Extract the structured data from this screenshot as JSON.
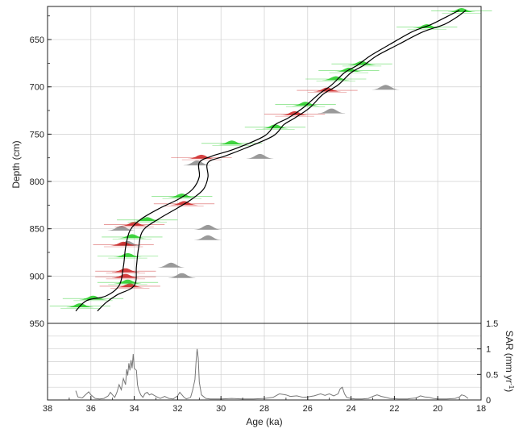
{
  "chart_data": {
    "type": "line",
    "title": "",
    "x_axis": {
      "label": "Age (ka)",
      "reversed": true,
      "range": [
        38,
        18
      ],
      "ticks": [
        38,
        36,
        34,
        32,
        30,
        28,
        26,
        24,
        22,
        20,
        18
      ]
    },
    "depth_axis": {
      "label": "Depth (cm)",
      "reversed": true,
      "range": [
        615,
        950
      ],
      "ticks": [
        650,
        700,
        750,
        800,
        850,
        900,
        950
      ]
    },
    "sar_axis": {
      "label_main": "SAR (mm yr",
      "label_sup": "-1",
      "label_end": ")",
      "range": [
        0,
        1.5
      ],
      "ticks": [
        0,
        0.5,
        1,
        1.5
      ],
      "tick_labels": [
        "0",
        "0.5",
        "1",
        "1.5"
      ]
    },
    "grid": true,
    "colors": {
      "envelope": "#000000",
      "accepted_date": "#22cc22",
      "outlier_date": "#cc2222",
      "rejected_date": "#888888",
      "sar_line": "#777777"
    },
    "series": [
      {
        "role": "age-depth-envelope-older",
        "points": [
          [
            36.7,
            937
          ],
          [
            36.2,
            926
          ],
          [
            35.3,
            921
          ],
          [
            34.7,
            910
          ],
          [
            34.5,
            890
          ],
          [
            34.4,
            870
          ],
          [
            34.2,
            852
          ],
          [
            33.7,
            840
          ],
          [
            32.8,
            828
          ],
          [
            31.9,
            818
          ],
          [
            31.3,
            808
          ],
          [
            31.0,
            795
          ],
          [
            31.0,
            780
          ],
          [
            30.4,
            773
          ],
          [
            29.4,
            766
          ],
          [
            28.0,
            752
          ],
          [
            27.5,
            740
          ],
          [
            26.9,
            733
          ],
          [
            26.2,
            722
          ],
          [
            25.5,
            708
          ],
          [
            24.9,
            698
          ],
          [
            24.3,
            685
          ],
          [
            23.7,
            677
          ],
          [
            23.1,
            667
          ],
          [
            22.2,
            655
          ],
          [
            21.2,
            642
          ],
          [
            20.3,
            634
          ],
          [
            19.6,
            626
          ],
          [
            19.0,
            619
          ]
        ]
      },
      {
        "role": "age-depth-envelope-younger",
        "points": [
          [
            35.7,
            937
          ],
          [
            35.3,
            928
          ],
          [
            34.8,
            920
          ],
          [
            34.0,
            910
          ],
          [
            33.9,
            890
          ],
          [
            33.8,
            870
          ],
          [
            33.6,
            852
          ],
          [
            32.9,
            840
          ],
          [
            32.0,
            828
          ],
          [
            31.3,
            818
          ],
          [
            30.8,
            808
          ],
          [
            30.6,
            795
          ],
          [
            30.6,
            780
          ],
          [
            29.8,
            773
          ],
          [
            28.9,
            765
          ],
          [
            27.6,
            752
          ],
          [
            27.1,
            740
          ],
          [
            26.6,
            733
          ],
          [
            25.9,
            722
          ],
          [
            25.3,
            708
          ],
          [
            24.6,
            698
          ],
          [
            24.0,
            685
          ],
          [
            23.4,
            677
          ],
          [
            22.8,
            667
          ],
          [
            21.8,
            655
          ],
          [
            20.7,
            642
          ],
          [
            19.7,
            634
          ],
          [
            19.1,
            626
          ],
          [
            18.7,
            619
          ]
        ]
      },
      {
        "role": "dates-accepted",
        "points": [
          [
            18.9,
            621
          ],
          [
            20.5,
            638
          ],
          [
            23.5,
            677
          ],
          [
            24.1,
            684
          ],
          [
            24.7,
            693
          ],
          [
            26.1,
            720
          ],
          [
            27.5,
            744
          ],
          [
            29.5,
            761
          ],
          [
            31.8,
            817
          ],
          [
            33.4,
            842
          ],
          [
            34.1,
            860
          ],
          [
            34.3,
            880
          ],
          [
            34.3,
            908
          ],
          [
            36.5,
            933
          ],
          [
            35.9,
            925
          ]
        ]
      },
      {
        "role": "dates-outliers",
        "points": [
          [
            25.1,
            705
          ],
          [
            26.6,
            730
          ],
          [
            30.9,
            776
          ],
          [
            31.7,
            825
          ],
          [
            34.0,
            847
          ],
          [
            34.5,
            868
          ],
          [
            34.4,
            896
          ],
          [
            34.4,
            902
          ],
          [
            34.2,
            912
          ]
        ]
      },
      {
        "role": "dates-rejected",
        "points": [
          [
            22.4,
            703
          ],
          [
            24.9,
            728
          ],
          [
            28.2,
            776
          ],
          [
            31.1,
            783
          ],
          [
            34.6,
            852
          ],
          [
            30.6,
            862
          ],
          [
            30.6,
            851
          ],
          [
            31.8,
            902
          ],
          [
            32.3,
            891
          ],
          [
            34.3,
            868
          ]
        ]
      },
      {
        "role": "sedimentation-rate",
        "points": [
          [
            36.7,
            0.18
          ],
          [
            36.6,
            0.06
          ],
          [
            36.4,
            0.04
          ],
          [
            36.2,
            0.12
          ],
          [
            36.1,
            0.16
          ],
          [
            36.0,
            0.1
          ],
          [
            35.8,
            0.03
          ],
          [
            35.6,
            0.02
          ],
          [
            35.4,
            0.03
          ],
          [
            35.2,
            0.08
          ],
          [
            35.1,
            0.15
          ],
          [
            35.0,
            0.1
          ],
          [
            34.9,
            0.05
          ],
          [
            34.8,
            0.15
          ],
          [
            34.7,
            0.3
          ],
          [
            34.6,
            0.2
          ],
          [
            34.5,
            0.42
          ],
          [
            34.4,
            0.3
          ],
          [
            34.35,
            0.6
          ],
          [
            34.3,
            0.48
          ],
          [
            34.25,
            0.72
          ],
          [
            34.2,
            0.58
          ],
          [
            34.15,
            0.78
          ],
          [
            34.1,
            0.62
          ],
          [
            34.05,
            0.9
          ],
          [
            34.0,
            0.62
          ],
          [
            33.9,
            0.58
          ],
          [
            33.85,
            0.3
          ],
          [
            33.8,
            0.2
          ],
          [
            33.7,
            0.1
          ],
          [
            33.6,
            0.05
          ],
          [
            33.5,
            0.13
          ],
          [
            33.4,
            0.15
          ],
          [
            33.3,
            0.1
          ],
          [
            33.2,
            0.12
          ],
          [
            33.0,
            0.07
          ],
          [
            32.8,
            0.03
          ],
          [
            32.6,
            0.07
          ],
          [
            32.4,
            0.03
          ],
          [
            32.2,
            0.02
          ],
          [
            32.0,
            0.08
          ],
          [
            31.9,
            0.15
          ],
          [
            31.8,
            0.1
          ],
          [
            31.7,
            0.05
          ],
          [
            31.6,
            0.02
          ],
          [
            31.4,
            0.05
          ],
          [
            31.3,
            0.2
          ],
          [
            31.2,
            0.4
          ],
          [
            31.15,
            0.75
          ],
          [
            31.1,
            1.0
          ],
          [
            31.05,
            0.82
          ],
          [
            31.0,
            0.35
          ],
          [
            30.9,
            0.1
          ],
          [
            30.7,
            0.03
          ],
          [
            30.5,
            0.02
          ],
          [
            30.0,
            0.02
          ],
          [
            29.5,
            0.03
          ],
          [
            29.0,
            0.02
          ],
          [
            28.5,
            0.02
          ],
          [
            28.0,
            0.03
          ],
          [
            27.6,
            0.05
          ],
          [
            27.3,
            0.12
          ],
          [
            27.0,
            0.1
          ],
          [
            26.8,
            0.07
          ],
          [
            26.5,
            0.08
          ],
          [
            26.2,
            0.05
          ],
          [
            26.0,
            0.06
          ],
          [
            25.7,
            0.08
          ],
          [
            25.4,
            0.12
          ],
          [
            25.2,
            0.09
          ],
          [
            25.0,
            0.12
          ],
          [
            24.8,
            0.08
          ],
          [
            24.6,
            0.12
          ],
          [
            24.5,
            0.22
          ],
          [
            24.4,
            0.25
          ],
          [
            24.3,
            0.12
          ],
          [
            24.2,
            0.05
          ],
          [
            24.0,
            0.03
          ],
          [
            23.8,
            0.02
          ],
          [
            23.5,
            0.02
          ],
          [
            23.2,
            0.03
          ],
          [
            23.0,
            0.07
          ],
          [
            22.8,
            0.1
          ],
          [
            22.6,
            0.07
          ],
          [
            22.4,
            0.05
          ],
          [
            22.2,
            0.03
          ],
          [
            21.8,
            0.02
          ],
          [
            21.4,
            0.02
          ],
          [
            21.0,
            0.04
          ],
          [
            20.8,
            0.08
          ],
          [
            20.6,
            0.06
          ],
          [
            20.4,
            0.05
          ],
          [
            20.2,
            0.03
          ],
          [
            20.0,
            0.02
          ],
          [
            19.6,
            0.02
          ],
          [
            19.2,
            0.03
          ],
          [
            19.0,
            0.06
          ],
          [
            18.9,
            0.1
          ],
          [
            18.75,
            0.08
          ],
          [
            18.6,
            0.03
          ]
        ]
      }
    ]
  }
}
